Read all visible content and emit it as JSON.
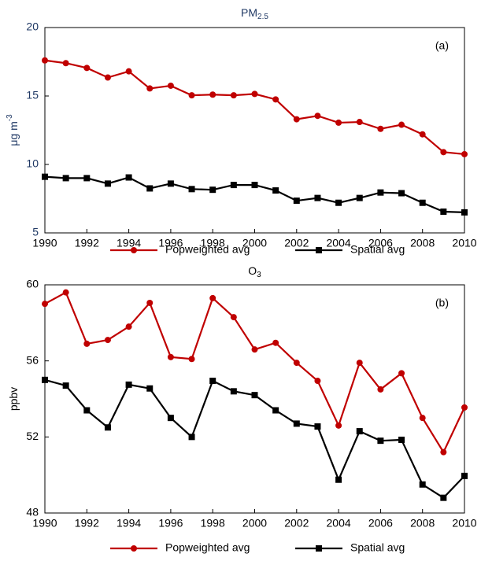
{
  "chart_data": [
    {
      "type": "line",
      "title": "PM",
      "title_sub": "2.5",
      "title_color": "#1f3864",
      "ylabel": "μg m",
      "ylabel_sup": "-3",
      "ylabel_color": "#1f3864",
      "annotation": "(a)",
      "x": [
        1990,
        1991,
        1992,
        1993,
        1994,
        1995,
        1996,
        1997,
        1998,
        1999,
        2000,
        2001,
        2002,
        2003,
        2004,
        2005,
        2006,
        2007,
        2008,
        2009,
        2010
      ],
      "xlim": [
        1990,
        2010
      ],
      "xticks": [
        1990,
        1992,
        1994,
        1996,
        1998,
        2000,
        2002,
        2004,
        2006,
        2008,
        2010
      ],
      "ylim": [
        5,
        20
      ],
      "yticks": [
        5,
        10,
        15,
        20
      ],
      "grid": false,
      "series": [
        {
          "name": "Popweighted avg",
          "color": "#c00000",
          "marker": "circle",
          "values": [
            17.6,
            17.4,
            17.05,
            16.35,
            16.8,
            15.55,
            15.75,
            15.05,
            15.1,
            15.05,
            15.15,
            14.75,
            13.3,
            13.55,
            13.05,
            13.1,
            12.6,
            12.9,
            12.2,
            10.9,
            10.75
          ]
        },
        {
          "name": "Spatial avg",
          "color": "#000000",
          "marker": "square",
          "values": [
            9.1,
            9.0,
            9.0,
            8.6,
            9.05,
            8.25,
            8.6,
            8.2,
            8.15,
            8.5,
            8.5,
            8.1,
            7.35,
            7.55,
            7.2,
            7.55,
            7.95,
            7.9,
            7.2,
            6.55,
            6.5
          ]
        }
      ]
    },
    {
      "type": "line",
      "title": "O",
      "title_sub": "3",
      "title_color": "#000000",
      "ylabel": "ppbv",
      "ylabel_color": "#000000",
      "annotation": "(b)",
      "x": [
        1990,
        1991,
        1992,
        1993,
        1994,
        1995,
        1996,
        1997,
        1998,
        1999,
        2000,
        2001,
        2002,
        2003,
        2004,
        2005,
        2006,
        2007,
        2008,
        2009,
        2010
      ],
      "xlim": [
        1990,
        2010
      ],
      "xticks": [
        1990,
        1992,
        1994,
        1996,
        1998,
        2000,
        2002,
        2004,
        2006,
        2008,
        2010
      ],
      "ylim": [
        48,
        60
      ],
      "yticks": [
        48,
        52,
        56,
        60
      ],
      "grid": false,
      "series": [
        {
          "name": "Popweighted avg",
          "color": "#c00000",
          "marker": "circle",
          "values": [
            59.0,
            59.6,
            56.9,
            57.1,
            57.8,
            59.05,
            56.2,
            56.1,
            59.3,
            58.3,
            56.6,
            56.95,
            55.9,
            54.95,
            52.6,
            55.9,
            54.5,
            55.35,
            53.0,
            51.2,
            53.55
          ]
        },
        {
          "name": "Spatial avg",
          "color": "#000000",
          "marker": "square",
          "values": [
            55.0,
            54.7,
            53.4,
            52.5,
            54.75,
            54.55,
            53.0,
            52.0,
            54.95,
            54.4,
            54.2,
            53.4,
            52.7,
            52.55,
            49.75,
            52.3,
            51.8,
            51.85,
            49.5,
            48.8,
            49.95
          ]
        }
      ]
    }
  ]
}
